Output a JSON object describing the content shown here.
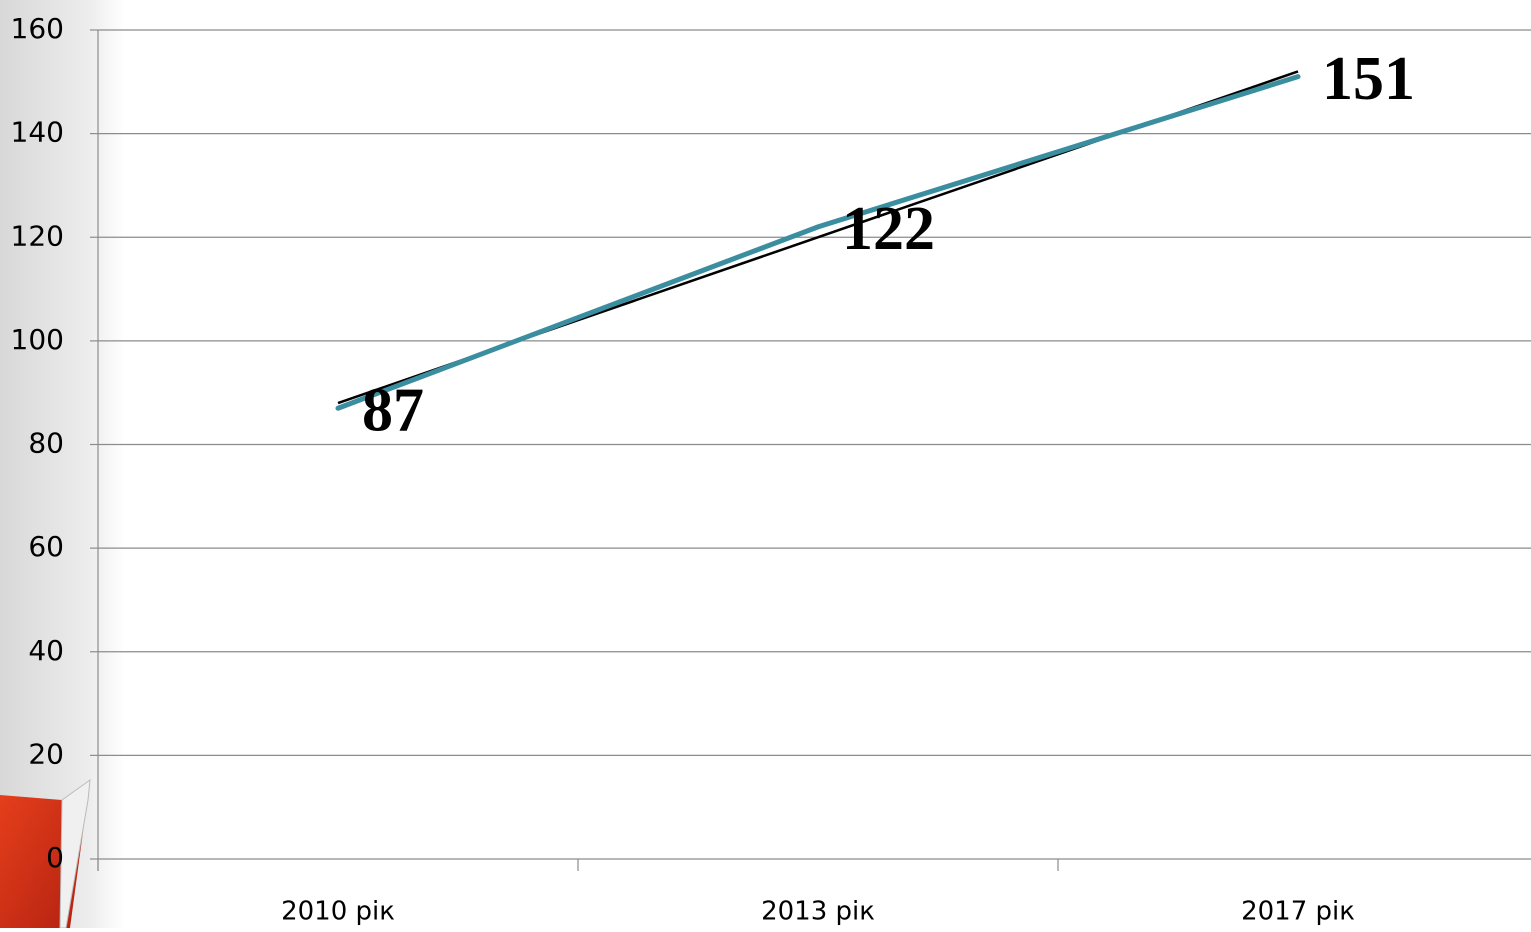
{
  "chart_data": {
    "type": "line",
    "categories": [
      "2010 рік",
      "2013 рік",
      "2017 рік"
    ],
    "series": [
      {
        "color": "#3b8ea0",
        "values": [
          87,
          122,
          151
        ]
      }
    ],
    "ylim": [
      0,
      160
    ],
    "yticks": [
      0,
      20,
      40,
      60,
      80,
      100,
      120,
      140,
      160
    ],
    "grid": true,
    "trendline": true,
    "trendline_color": "#000000",
    "data_labels": true
  }
}
